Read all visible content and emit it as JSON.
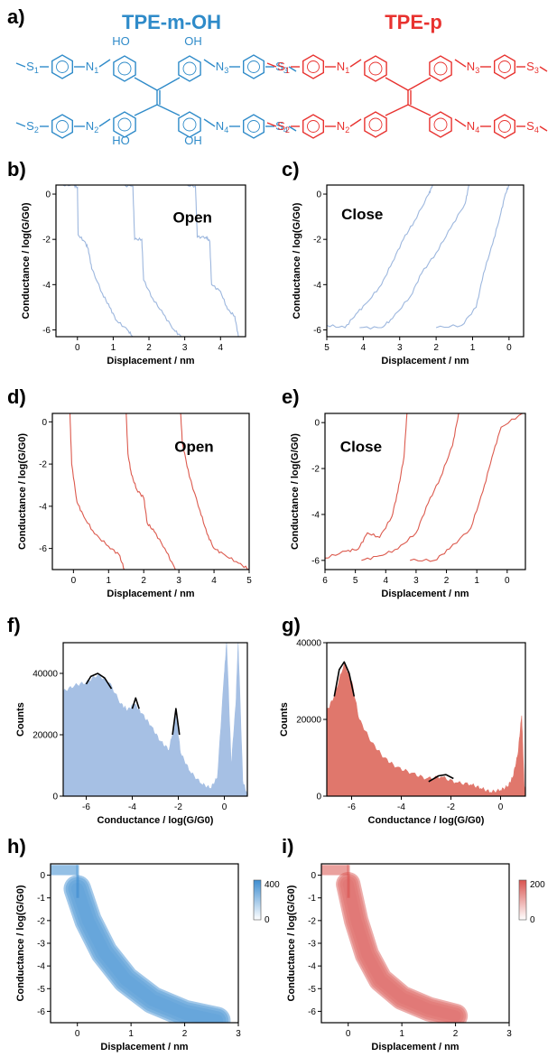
{
  "molecules": {
    "left": {
      "title": "TPE-m-OH",
      "color": "#2f8bc9",
      "oh_label": "OH",
      "ho_label": "HO",
      "s_labels": [
        "S",
        "S",
        "S",
        "S"
      ],
      "n_labels": [
        "N",
        "N",
        "N",
        "N"
      ],
      "subs": [
        "1",
        "2",
        "3",
        "4"
      ]
    },
    "right": {
      "title": "TPE-p",
      "color": "#e8322f",
      "s_labels": [
        "S",
        "S",
        "S",
        "S"
      ],
      "n_labels": [
        "N",
        "N",
        "N",
        "N"
      ],
      "subs": [
        "1",
        "2",
        "3",
        "4"
      ]
    }
  },
  "colors": {
    "blue_trace": "#9db7de",
    "red_trace": "#dc5a4e",
    "blue_hist": "#a6c0e4",
    "red_hist": "#e0776c",
    "fit": "#000000",
    "blue_heat": "#3d8dd0",
    "red_heat": "#d9534f"
  },
  "chart_data": [
    {
      "id": "b",
      "letter": "b)",
      "type": "line",
      "annotation": "Open",
      "xlabel": "Displacement / nm",
      "ylabel": "Conductance / log(G/G0)",
      "xlim": [
        -0.6,
        4.7
      ],
      "ylim": [
        -6.3,
        0.4
      ],
      "xticks": [
        0,
        1,
        2,
        3,
        4
      ],
      "xticklabels": [
        "0",
        "1",
        "2",
        "3",
        "4"
      ],
      "yticks": [
        0,
        -2,
        -4,
        -6
      ],
      "yticklabels": [
        "0",
        "-2",
        "-4",
        "-6"
      ],
      "series": [
        {
          "points": [
            [
              -0.4,
              0.4
            ],
            [
              -0.1,
              0.4
            ],
            [
              0.0,
              0.3
            ],
            [
              0.02,
              -1.8
            ],
            [
              0.2,
              -2.1
            ],
            [
              0.3,
              -2.4
            ],
            [
              0.4,
              -3.3
            ],
            [
              0.7,
              -4.4
            ],
            [
              0.9,
              -5.0
            ],
            [
              1.1,
              -5.6
            ],
            [
              1.4,
              -6.0
            ],
            [
              1.55,
              -6.3
            ]
          ]
        },
        {
          "points": [
            [
              1.2,
              0.4
            ],
            [
              1.55,
              0.35
            ],
            [
              1.6,
              -2.0
            ],
            [
              1.8,
              -2.0
            ],
            [
              1.85,
              -3.8
            ],
            [
              2.1,
              -4.6
            ],
            [
              2.4,
              -5.3
            ],
            [
              2.7,
              -6.0
            ],
            [
              2.9,
              -6.3
            ]
          ]
        },
        {
          "points": [
            [
              3.0,
              0.4
            ],
            [
              3.3,
              0.35
            ],
            [
              3.35,
              -1.9
            ],
            [
              3.6,
              -1.9
            ],
            [
              3.7,
              -2.1
            ],
            [
              3.75,
              -4.0
            ],
            [
              4.0,
              -4.3
            ],
            [
              4.2,
              -5.1
            ],
            [
              4.4,
              -5.4
            ],
            [
              4.5,
              -6.3
            ]
          ]
        }
      ]
    },
    {
      "id": "c",
      "letter": "c)",
      "type": "line",
      "annotation": "Close",
      "xlabel": "Displacement / nm",
      "ylabel": "Conductance / log(G/G0)",
      "xlim": [
        5.0,
        -0.4
      ],
      "ylim": [
        -6.3,
        0.4
      ],
      "xticks": [
        5,
        4,
        3,
        2,
        1,
        0
      ],
      "xticklabels": [
        "5",
        "4",
        "3",
        "2",
        "1",
        "0"
      ],
      "yticks": [
        0,
        -2,
        -4,
        -6
      ],
      "yticklabels": [
        "0",
        "-2",
        "-4",
        "-6"
      ],
      "series": [
        {
          "points": [
            [
              5.0,
              -5.8
            ],
            [
              4.5,
              -5.9
            ],
            [
              4.2,
              -5.3
            ],
            [
              3.9,
              -4.8
            ],
            [
              3.5,
              -4.0
            ],
            [
              3.2,
              -3.0
            ],
            [
              2.9,
              -2.0
            ],
            [
              2.6,
              -1.2
            ],
            [
              2.2,
              0.0
            ],
            [
              2.1,
              0.4
            ]
          ]
        },
        {
          "points": [
            [
              4.1,
              -5.9
            ],
            [
              3.5,
              -5.9
            ],
            [
              3.2,
              -5.5
            ],
            [
              2.7,
              -4.5
            ],
            [
              2.4,
              -3.5
            ],
            [
              2.0,
              -2.6
            ],
            [
              1.6,
              -1.5
            ],
            [
              1.2,
              -0.4
            ],
            [
              1.1,
              0.4
            ]
          ]
        },
        {
          "points": [
            [
              2.0,
              -5.9
            ],
            [
              1.3,
              -5.8
            ],
            [
              0.9,
              -5.0
            ],
            [
              0.7,
              -3.5
            ],
            [
              0.45,
              -2.2
            ],
            [
              0.25,
              -1.0
            ],
            [
              0.1,
              0.0
            ],
            [
              0.0,
              0.4
            ]
          ]
        }
      ]
    },
    {
      "id": "d",
      "letter": "d)",
      "type": "line",
      "annotation": "Open",
      "xlabel": "Displacement / nm",
      "ylabel": "Conductance / log(G/G0)",
      "xlim": [
        -0.6,
        5.0
      ],
      "ylim": [
        -7.0,
        0.4
      ],
      "xticks": [
        0,
        1,
        2,
        3,
        4,
        5
      ],
      "xticklabels": [
        "0",
        "1",
        "2",
        "3",
        "4",
        "5"
      ],
      "yticks": [
        0,
        -2,
        -4,
        -6
      ],
      "yticklabels": [
        "0",
        "-2",
        "-4",
        "-6"
      ],
      "series": [
        {
          "points": [
            [
              -0.1,
              0.4
            ],
            [
              -0.05,
              -2.0
            ],
            [
              0.1,
              -3.8
            ],
            [
              0.3,
              -4.5
            ],
            [
              0.6,
              -5.3
            ],
            [
              1.0,
              -5.9
            ],
            [
              1.3,
              -6.3
            ],
            [
              1.45,
              -7.0
            ]
          ]
        },
        {
          "points": [
            [
              1.5,
              0.4
            ],
            [
              1.55,
              -1.5
            ],
            [
              1.65,
              -2.5
            ],
            [
              1.8,
              -3.2
            ],
            [
              2.0,
              -3.6
            ],
            [
              2.1,
              -4.8
            ],
            [
              2.3,
              -5.2
            ],
            [
              2.6,
              -6.0
            ],
            [
              2.9,
              -7.0
            ]
          ]
        },
        {
          "points": [
            [
              3.05,
              0.4
            ],
            [
              3.1,
              -1.0
            ],
            [
              3.3,
              -2.6
            ],
            [
              3.6,
              -4.2
            ],
            [
              3.8,
              -5.3
            ],
            [
              4.0,
              -6.0
            ],
            [
              4.3,
              -6.3
            ],
            [
              4.7,
              -6.7
            ],
            [
              5.0,
              -7.0
            ]
          ]
        }
      ]
    },
    {
      "id": "e",
      "letter": "e)",
      "type": "line",
      "annotation": "Close",
      "xlabel": "Displacement / nm",
      "ylabel": "Conductance / log(G/G0)",
      "xlim": [
        6.0,
        -0.6
      ],
      "ylim": [
        -6.4,
        0.4
      ],
      "xticks": [
        6,
        5,
        4,
        3,
        2,
        1,
        0
      ],
      "xticklabels": [
        "6",
        "5",
        "4",
        "3",
        "2",
        "1",
        "0"
      ],
      "yticks": [
        0,
        -2,
        -4,
        -6
      ],
      "yticklabels": [
        "0",
        "-2",
        "-4",
        "-6"
      ],
      "series": [
        {
          "points": [
            [
              6.0,
              -5.9
            ],
            [
              5.3,
              -5.6
            ],
            [
              4.9,
              -5.5
            ],
            [
              4.6,
              -4.8
            ],
            [
              4.2,
              -5.0
            ],
            [
              3.8,
              -4.1
            ],
            [
              3.6,
              -3.0
            ],
            [
              3.4,
              -1.5
            ],
            [
              3.3,
              0.4
            ]
          ]
        },
        {
          "points": [
            [
              4.8,
              -6.0
            ],
            [
              4.2,
              -5.8
            ],
            [
              3.6,
              -5.5
            ],
            [
              3.0,
              -4.8
            ],
            [
              2.6,
              -3.5
            ],
            [
              2.2,
              -2.4
            ],
            [
              1.8,
              -1.0
            ],
            [
              1.6,
              0.4
            ]
          ]
        },
        {
          "points": [
            [
              3.2,
              -6.0
            ],
            [
              2.4,
              -6.0
            ],
            [
              1.9,
              -5.5
            ],
            [
              1.2,
              -4.6
            ],
            [
              0.8,
              -3.0
            ],
            [
              0.5,
              -1.5
            ],
            [
              0.2,
              -0.2
            ],
            [
              -0.5,
              0.4
            ]
          ]
        }
      ]
    },
    {
      "id": "f",
      "letter": "f)",
      "type": "area",
      "xlabel": "Conductance / log(G/G0)",
      "ylabel": "Counts",
      "xlim": [
        -7.0,
        1.0
      ],
      "ylim": [
        0,
        50000
      ],
      "xticks": [
        -6,
        -4,
        -2,
        0
      ],
      "xticklabels": [
        "-6",
        "-4",
        "-2",
        "0"
      ],
      "yticks": [
        0,
        20000,
        40000
      ],
      "yticklabels": [
        "0",
        "20000",
        "40000"
      ],
      "hist": [
        [
          -7.0,
          34000
        ],
        [
          -6.5,
          36000
        ],
        [
          -6.0,
          37000
        ],
        [
          -5.5,
          39500
        ],
        [
          -5.0,
          37000
        ],
        [
          -4.5,
          30000
        ],
        [
          -4.2,
          28000
        ],
        [
          -3.9,
          30000
        ],
        [
          -3.6,
          27000
        ],
        [
          -3.2,
          23000
        ],
        [
          -2.8,
          18000
        ],
        [
          -2.4,
          15000
        ],
        [
          -2.1,
          26000
        ],
        [
          -1.9,
          14000
        ],
        [
          -1.5,
          8000
        ],
        [
          -1.0,
          4000
        ],
        [
          -0.6,
          2500
        ],
        [
          -0.3,
          6000
        ],
        [
          0.0,
          40000
        ],
        [
          0.1,
          50000
        ],
        [
          0.3,
          10000
        ],
        [
          0.5,
          30000
        ],
        [
          0.6,
          50000
        ],
        [
          0.8,
          5000
        ],
        [
          1.0,
          0
        ]
      ],
      "fits": [
        {
          "points": [
            [
              -6.0,
              36500
            ],
            [
              -5.8,
              39000
            ],
            [
              -5.5,
              40000
            ],
            [
              -5.2,
              38500
            ],
            [
              -4.9,
              35000
            ]
          ]
        },
        {
          "points": [
            [
              -4.0,
              28500
            ],
            [
              -3.85,
              32000
            ],
            [
              -3.7,
              28500
            ]
          ]
        },
        {
          "points": [
            [
              -2.25,
              20000
            ],
            [
              -2.1,
              28500
            ],
            [
              -1.95,
              20000
            ]
          ]
        }
      ]
    },
    {
      "id": "g",
      "letter": "g)",
      "type": "area",
      "xlabel": "Conductance / log(G/G0)",
      "ylabel": "Counts",
      "xlim": [
        -7.0,
        1.0
      ],
      "ylim": [
        0,
        40000
      ],
      "xticks": [
        -6,
        -4,
        -2,
        0
      ],
      "xticklabels": [
        "-6",
        "-4",
        "-2",
        "0"
      ],
      "yticks": [
        0,
        20000,
        40000
      ],
      "yticklabels": [
        "0",
        "20000",
        "40000"
      ],
      "hist": [
        [
          -7.0,
          22000
        ],
        [
          -6.7,
          26000
        ],
        [
          -6.3,
          34500
        ],
        [
          -6.0,
          30000
        ],
        [
          -5.7,
          20000
        ],
        [
          -5.2,
          14000
        ],
        [
          -4.7,
          10000
        ],
        [
          -4.2,
          7500
        ],
        [
          -3.6,
          6000
        ],
        [
          -3.0,
          4500
        ],
        [
          -2.4,
          5000
        ],
        [
          -1.8,
          3500
        ],
        [
          -1.2,
          3000
        ],
        [
          -0.8,
          2000
        ],
        [
          -0.4,
          1000
        ],
        [
          0.0,
          1500
        ],
        [
          0.3,
          2500
        ],
        [
          0.5,
          5000
        ],
        [
          0.7,
          11000
        ],
        [
          0.85,
          21000
        ],
        [
          0.95,
          3000
        ],
        [
          1.0,
          0
        ]
      ],
      "fits": [
        {
          "points": [
            [
              -6.7,
              26000
            ],
            [
              -6.5,
              33000
            ],
            [
              -6.3,
              35000
            ],
            [
              -6.1,
              32000
            ],
            [
              -5.9,
              26000
            ]
          ]
        },
        {
          "points": [
            [
              -2.9,
              3800
            ],
            [
              -2.5,
              5300
            ],
            [
              -2.2,
              5600
            ],
            [
              -1.9,
              4600
            ]
          ]
        }
      ]
    },
    {
      "id": "h",
      "letter": "h)",
      "type": "heatmap",
      "xlabel": "Displacement / nm",
      "ylabel": "Conductance / log(G/G0)",
      "xlim": [
        -0.5,
        3.0
      ],
      "ylim": [
        -6.5,
        0.5
      ],
      "xticks": [
        0,
        1,
        2,
        3
      ],
      "xticklabels": [
        "0",
        "1",
        "2",
        "3"
      ],
      "yticks": [
        0,
        -1,
        -2,
        -3,
        -4,
        -5,
        -6
      ],
      "yticklabels": [
        "0",
        "-1",
        "-2",
        "-3",
        "-4",
        "-5",
        "-6"
      ],
      "colorbar": {
        "min_label": "0",
        "max_label": "400"
      },
      "band": [
        [
          0.0,
          -0.6
        ],
        [
          0.2,
          -2.0
        ],
        [
          0.5,
          -3.4
        ],
        [
          0.9,
          -4.6
        ],
        [
          1.4,
          -5.5
        ],
        [
          2.0,
          -6.1
        ],
        [
          2.6,
          -6.4
        ]
      ],
      "band_width": 0.9
    },
    {
      "id": "i",
      "letter": "i)",
      "type": "heatmap",
      "xlabel": "Displacement / nm",
      "ylabel": "Conductance / log(G/G0)",
      "xlim": [
        -0.5,
        3.0
      ],
      "ylim": [
        -6.5,
        0.5
      ],
      "xticks": [
        0,
        1,
        2,
        3
      ],
      "xticklabels": [
        "0",
        "1",
        "2",
        "3"
      ],
      "yticks": [
        0,
        -1,
        -2,
        -3,
        -4,
        -5,
        -6
      ],
      "yticklabels": [
        "0",
        "-1",
        "-2",
        "-3",
        "-4",
        "-5",
        "-6"
      ],
      "colorbar": {
        "min_label": "0",
        "max_label": "200"
      },
      "band": [
        [
          0.0,
          -0.4
        ],
        [
          0.15,
          -2.0
        ],
        [
          0.35,
          -3.5
        ],
        [
          0.6,
          -4.6
        ],
        [
          1.0,
          -5.4
        ],
        [
          1.5,
          -5.9
        ],
        [
          2.0,
          -6.2
        ]
      ],
      "band_width": 0.8
    }
  ]
}
